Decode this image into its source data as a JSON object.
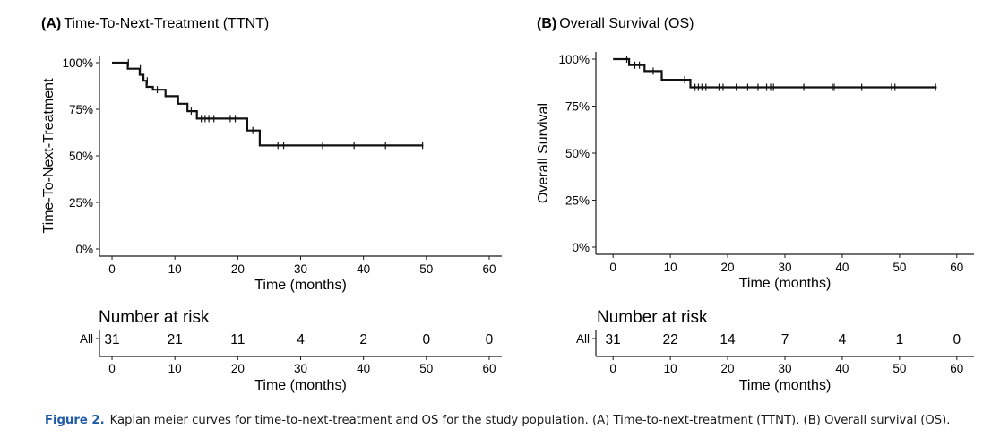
{
  "chart_data": [
    {
      "type": "line",
      "panel_label": "(A)",
      "title": "Time-To-Next-Treatment (TTNT)",
      "xlabel": "Time (months)",
      "ylabel": "Time-To-Next-Treatment",
      "xlim": [
        -2,
        62
      ],
      "ylim": [
        0,
        1
      ],
      "xticks": [
        0,
        10,
        20,
        30,
        40,
        50,
        60
      ],
      "yticks": [
        {
          "value": 0,
          "label": "0%"
        },
        {
          "value": 0.25,
          "label": "25%"
        },
        {
          "value": 0.5,
          "label": "50%"
        },
        {
          "value": 0.75,
          "label": "75%"
        },
        {
          "value": 1,
          "label": "100%"
        }
      ],
      "grid": false,
      "series": [
        {
          "step": [
            [
              0,
              1.0
            ],
            [
              2.5,
              1.0
            ],
            [
              2.5,
              0.968
            ],
            [
              4.4,
              0.968
            ],
            [
              4.4,
              0.935
            ],
            [
              5.0,
              0.935
            ],
            [
              5.0,
              0.903
            ],
            [
              5.5,
              0.903
            ],
            [
              5.5,
              0.87
            ],
            [
              6.5,
              0.87
            ],
            [
              6.5,
              0.855
            ],
            [
              8.5,
              0.855
            ],
            [
              8.5,
              0.82
            ],
            [
              10.5,
              0.82
            ],
            [
              10.5,
              0.78
            ],
            [
              12.0,
              0.78
            ],
            [
              12.0,
              0.74
            ],
            [
              13.5,
              0.74
            ],
            [
              13.5,
              0.7
            ],
            [
              21.5,
              0.7
            ],
            [
              21.5,
              0.636
            ],
            [
              23.5,
              0.636
            ],
            [
              23.5,
              0.556
            ],
            [
              49.5,
              0.556
            ]
          ],
          "censored": [
            [
              2.6,
              1.0
            ],
            [
              4.5,
              0.968
            ],
            [
              5.6,
              0.903
            ],
            [
              7.2,
              0.855
            ],
            [
              12.6,
              0.74
            ],
            [
              14.2,
              0.7
            ],
            [
              14.8,
              0.7
            ],
            [
              15.4,
              0.7
            ],
            [
              16.2,
              0.7
            ],
            [
              18.8,
              0.7
            ],
            [
              19.6,
              0.7
            ],
            [
              22.4,
              0.636
            ],
            [
              26.4,
              0.556
            ],
            [
              27.3,
              0.556
            ],
            [
              33.5,
              0.556
            ],
            [
              38.5,
              0.556
            ],
            [
              43.5,
              0.556
            ],
            [
              49.4,
              0.556
            ]
          ]
        }
      ],
      "risk_table": {
        "title": "Number at risk",
        "strata_label": "All",
        "times": [
          0,
          10,
          20,
          30,
          40,
          50,
          60
        ],
        "counts": [
          "31",
          "21",
          "11",
          "4",
          "2",
          "0",
          "0"
        ],
        "xlabel": "Time (months)"
      }
    },
    {
      "type": "line",
      "panel_label": "(B)",
      "title": "Overall Survival (OS)",
      "xlabel": "Time (months)",
      "ylabel": "Overall Survival",
      "xlim": [
        -3,
        63
      ],
      "ylim": [
        0,
        1
      ],
      "xticks": [
        0,
        10,
        20,
        30,
        40,
        50,
        60
      ],
      "yticks": [
        {
          "value": 0,
          "label": "0%"
        },
        {
          "value": 0.25,
          "label": "25%"
        },
        {
          "value": 0.5,
          "label": "50%"
        },
        {
          "value": 0.75,
          "label": "75%"
        },
        {
          "value": 1,
          "label": "100%"
        }
      ],
      "grid": false,
      "series": [
        {
          "step": [
            [
              0,
              1.0
            ],
            [
              2.8,
              1.0
            ],
            [
              2.8,
              0.968
            ],
            [
              5.5,
              0.968
            ],
            [
              5.5,
              0.936
            ],
            [
              8.5,
              0.936
            ],
            [
              8.5,
              0.89
            ],
            [
              13.5,
              0.89
            ],
            [
              13.5,
              0.85
            ],
            [
              56.5,
              0.85
            ]
          ],
          "censored": [
            [
              2.4,
              1.0
            ],
            [
              3.8,
              0.968
            ],
            [
              4.6,
              0.968
            ],
            [
              7.0,
              0.936
            ],
            [
              12.5,
              0.89
            ],
            [
              14.3,
              0.85
            ],
            [
              14.9,
              0.85
            ],
            [
              15.5,
              0.85
            ],
            [
              16.2,
              0.85
            ],
            [
              18.5,
              0.85
            ],
            [
              19.2,
              0.85
            ],
            [
              21.5,
              0.85
            ],
            [
              23.5,
              0.85
            ],
            [
              25.3,
              0.85
            ],
            [
              26.8,
              0.85
            ],
            [
              27.5,
              0.85
            ],
            [
              28.0,
              0.85
            ],
            [
              33.3,
              0.85
            ],
            [
              38.3,
              0.85
            ],
            [
              38.6,
              0.85
            ],
            [
              43.4,
              0.85
            ],
            [
              48.6,
              0.85
            ],
            [
              49.2,
              0.85
            ],
            [
              56.3,
              0.85
            ]
          ]
        }
      ],
      "risk_table": {
        "title": "Number at risk",
        "strata_label": "All",
        "times": [
          0,
          10,
          20,
          30,
          40,
          50,
          60
        ],
        "counts": [
          "31",
          "22",
          "14",
          "7",
          "4",
          "1",
          "0"
        ],
        "xlabel": "Time (months)"
      }
    }
  ],
  "caption": {
    "lead": "Figure 2.",
    "text": "Kaplan meier curves for time-to-next-treatment and OS for the study population. (A) Time-to-next-treatment (TTNT). (B) Overall survival (OS)."
  }
}
